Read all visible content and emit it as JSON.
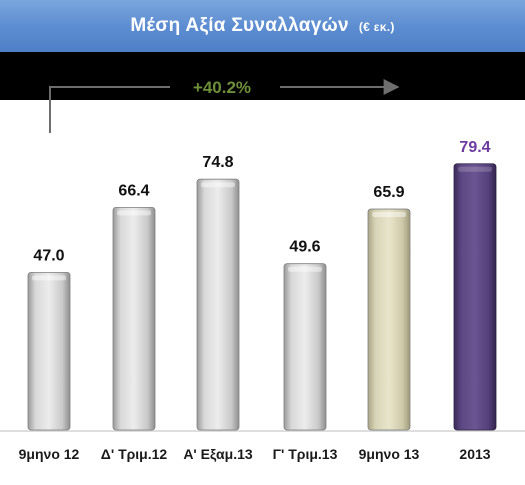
{
  "title": {
    "main": "Μέση Αξία Συναλλαγών",
    "unit": "(€ εκ.)"
  },
  "growth": {
    "label": "+40.2%"
  },
  "colors": {
    "title_bg": "#5b8bd0",
    "growth_text": "#6e8f3a",
    "bar_grey": "#c6c6c6",
    "bar_beige": "#cfcbaa",
    "bar_purple": "#5c477f",
    "highlight_label": "#6d3aa0"
  },
  "chart_data": {
    "type": "bar",
    "title": "Μέση Αξία Συναλλαγών",
    "ylabel": "",
    "xlabel": "",
    "ylim": [
      0,
      85
    ],
    "grid": false,
    "categories": [
      "9μηνο 12",
      "Δ' Τριμ.12",
      "Α' Εξαμ.13",
      "Γ' Τριμ.13",
      "9μηνο 13",
      "2013"
    ],
    "values": [
      47.0,
      66.4,
      74.8,
      49.6,
      65.9,
      79.4
    ],
    "value_labels": [
      "47.0",
      "66.4",
      "74.8",
      "49.6",
      "65.9",
      "79.4"
    ],
    "bar_styles": [
      "grey",
      "grey",
      "grey",
      "grey",
      "beige",
      "purple"
    ]
  }
}
